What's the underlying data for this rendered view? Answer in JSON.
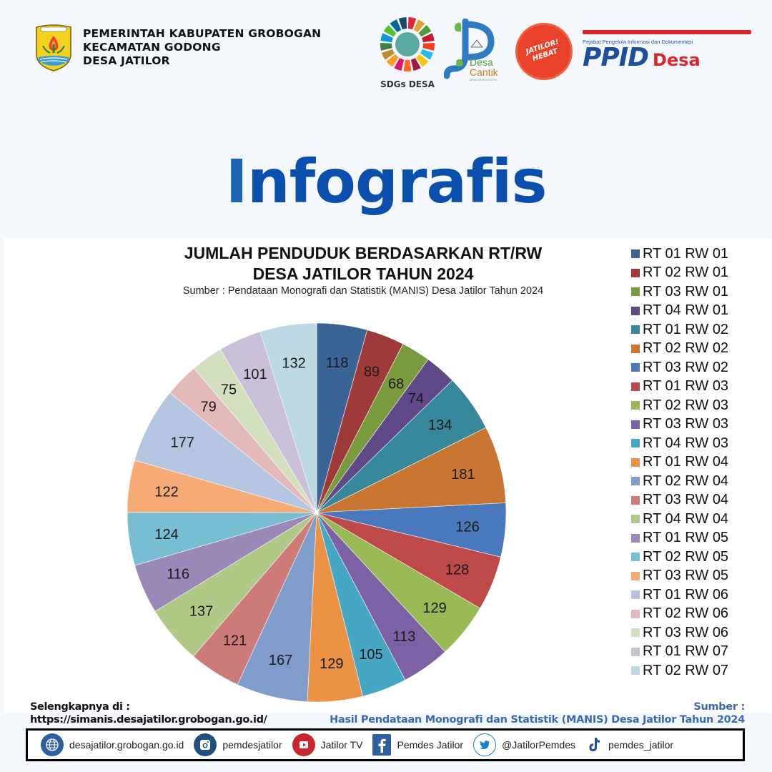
{
  "header": {
    "gov_lines": [
      "PEMERINTAH KABUPATEN GROBOGAN",
      "KECAMATAN GODONG",
      "DESA JATILOR"
    ],
    "logos": {
      "sdgs": "SDGs DESA",
      "desa_cantik_1": "Desa",
      "desa_cantik_2": "Cantik",
      "desa_cantik_tag": "DESA CINTA STATISTIK",
      "jatilor_hebat": "JATILOR! HEBAT",
      "ppid_tag": "Pejabat Pengelola Informasi dan Dokumentasi",
      "ppid": "PPID",
      "ppid_desa": "Desa"
    }
  },
  "hero": {
    "first_letter": "I",
    "rest": "nfografis"
  },
  "chart_data": {
    "type": "pie",
    "title": "JUMLAH PENDUDUK BERDASARKAN RT/RW",
    "title_line2": "DESA JATILOR TAHUN 2024",
    "subtitle": "Sumber : Pendataan Monografi dan Statistik (MANIS) Desa Jatilor Tahun 2024",
    "legend_position": "right",
    "start_angle": "12 o'clock, clockwise",
    "categories": [
      "RT 01 RW 01",
      "RT 02 RW 01",
      "RT 03 RW 01",
      "RT 04 RW 01",
      "RT 01 RW 02",
      "RT 02 RW 02",
      "RT 03 RW 02",
      "RT 01 RW 03",
      "RT 02 RW 03",
      "RT 03 RW 03",
      "RT 04 RW 03",
      "RT 01 RW 04",
      "RT 02 RW 04",
      "RT 03 RW 04",
      "RT 04 RW 04",
      "RT 01 RW 05",
      "RT 02 RW 05",
      "RT 03 RW 05",
      "RT 01 RW 06",
      "RT 02 RW 06",
      "RT 03 RW 06",
      "RT 01 RW 07",
      "RT 02 RW 07"
    ],
    "values": [
      118,
      89,
      68,
      74,
      134,
      181,
      126,
      128,
      129,
      113,
      105,
      129,
      167,
      121,
      137,
      116,
      124,
      122,
      177,
      79,
      75,
      101,
      132
    ],
    "colors": [
      "#3b6496",
      "#9e3b3a",
      "#7a9a3e",
      "#5f4a87",
      "#37879a",
      "#c97632",
      "#4a78bc",
      "#bd4a48",
      "#98b954",
      "#7c62a4",
      "#45a7c3",
      "#ea9143",
      "#7f9cca",
      "#cd7b79",
      "#b0c987",
      "#9a88b9",
      "#77bed3",
      "#f6ab76",
      "#b3c5e1",
      "#e2b9b8",
      "#d3e0be",
      "#c9bfd9",
      "#bcd9e3"
    ]
  },
  "footer": {
    "more_label": "Selengkapnya di :",
    "more_url": "https://simanis.desajatilor.grobogan.go.id/",
    "source_label": "Sumber :",
    "source_text": "Hasil Pendataan Monografi dan Statistik (MANIS) Desa Jatilor Tahun 2024",
    "social": [
      {
        "icon": "globe-icon",
        "label": "desajatilor.grobogan.go.id",
        "color": "#2f5f9e"
      },
      {
        "icon": "instagram-icon",
        "label": "pemdesjatilor",
        "color": "#1f4f7e"
      },
      {
        "icon": "youtube-icon",
        "label": "Jatilor TV",
        "color": "#c8282c"
      },
      {
        "icon": "facebook-icon",
        "label": "Pemdes Jatilor",
        "color": "#2f5f9e"
      },
      {
        "icon": "twitter-icon",
        "label": "@JatilorPemdes",
        "color": "#1d7fc9"
      },
      {
        "icon": "tiktok-icon",
        "label": "pemdes_jatilor",
        "color": "#1f4f9e"
      }
    ]
  }
}
